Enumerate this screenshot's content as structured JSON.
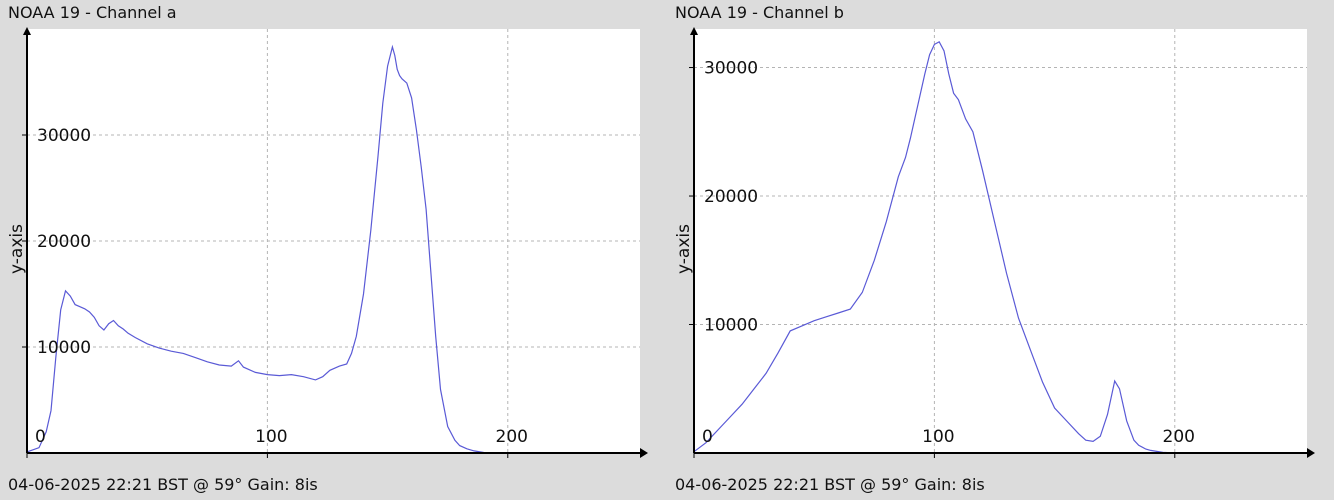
{
  "panels": [
    {
      "title": "NOAA 19 - Channel a",
      "footer": "04-06-2025 22:21 BST @ 59° Gain: 8is"
    },
    {
      "title": "NOAA 19 - Channel b",
      "footer": "04-06-2025 22:21 BST @ 59° Gain: 8is"
    }
  ],
  "colors": {
    "line": "#5a5ad6",
    "grid": "#b4b4b4",
    "axis": "#000000",
    "plot_bg": "#ffffff",
    "page_bg": "#dcdcdc"
  },
  "chart_data": [
    {
      "type": "line",
      "title": "NOAA 19 - Channel a",
      "xlabel": "",
      "ylabel": "y-axis",
      "xlim": [
        0,
        255
      ],
      "ylim": [
        0,
        40000
      ],
      "xticks": [
        0,
        100,
        200
      ],
      "yticks": [
        10000,
        20000,
        30000
      ],
      "grid": true,
      "series": [
        {
          "x": [
            0,
            5,
            8,
            10,
            12,
            14,
            16,
            18,
            20,
            22,
            24,
            26,
            28,
            30,
            32,
            34,
            36,
            38,
            40,
            42,
            45,
            50,
            55,
            60,
            65,
            70,
            75,
            80,
            85,
            88,
            90,
            95,
            100,
            105,
            110,
            115,
            120,
            123,
            126,
            130,
            133,
            135,
            137,
            140,
            143,
            146,
            148,
            150,
            152,
            153,
            154,
            155,
            156,
            158,
            160,
            162,
            164,
            166,
            168,
            170,
            172,
            175,
            178,
            180,
            183,
            186,
            190
          ],
          "y": [
            100,
            500,
            2000,
            4000,
            9000,
            13500,
            15300,
            14800,
            14000,
            13800,
            13600,
            13300,
            12800,
            12000,
            11600,
            12200,
            12500,
            12000,
            11700,
            11300,
            10900,
            10300,
            9900,
            9600,
            9400,
            9000,
            8600,
            8300,
            8200,
            8700,
            8100,
            7600,
            7400,
            7300,
            7400,
            7200,
            6900,
            7200,
            7800,
            8200,
            8400,
            9400,
            11000,
            15000,
            21000,
            28000,
            33000,
            36500,
            38300,
            37500,
            36200,
            35600,
            35300,
            34900,
            33500,
            30500,
            27000,
            23000,
            17000,
            11000,
            6000,
            2500,
            1200,
            700,
            400,
            200,
            50
          ]
        }
      ]
    },
    {
      "type": "line",
      "title": "NOAA 19 - Channel b",
      "xlabel": "",
      "ylabel": "y-axis",
      "xlim": [
        0,
        255
      ],
      "ylim": [
        0,
        33000
      ],
      "xticks": [
        0,
        100,
        200
      ],
      "yticks": [
        10000,
        20000,
        30000
      ],
      "grid": true,
      "series": [
        {
          "x": [
            0,
            5,
            10,
            15,
            20,
            25,
            30,
            35,
            40,
            45,
            50,
            55,
            60,
            65,
            70,
            75,
            80,
            85,
            88,
            90,
            93,
            96,
            98,
            100,
            102,
            104,
            106,
            108,
            110,
            113,
            116,
            120,
            125,
            130,
            135,
            140,
            145,
            150,
            155,
            160,
            163,
            166,
            169,
            172,
            175,
            177,
            180,
            183,
            185,
            188,
            190,
            195,
            200
          ],
          "y": [
            100,
            800,
            1800,
            2800,
            3800,
            5000,
            6200,
            7800,
            9500,
            9900,
            10300,
            10600,
            10900,
            11200,
            12500,
            15000,
            18000,
            21500,
            23000,
            24500,
            27000,
            29500,
            31000,
            31800,
            32000,
            31300,
            29500,
            28000,
            27500,
            26000,
            25000,
            22000,
            18000,
            14000,
            10500,
            8000,
            5500,
            3500,
            2500,
            1500,
            1000,
            900,
            1300,
            3000,
            5600,
            5000,
            2500,
            1000,
            600,
            300,
            200,
            50,
            0
          ]
        }
      ]
    }
  ]
}
